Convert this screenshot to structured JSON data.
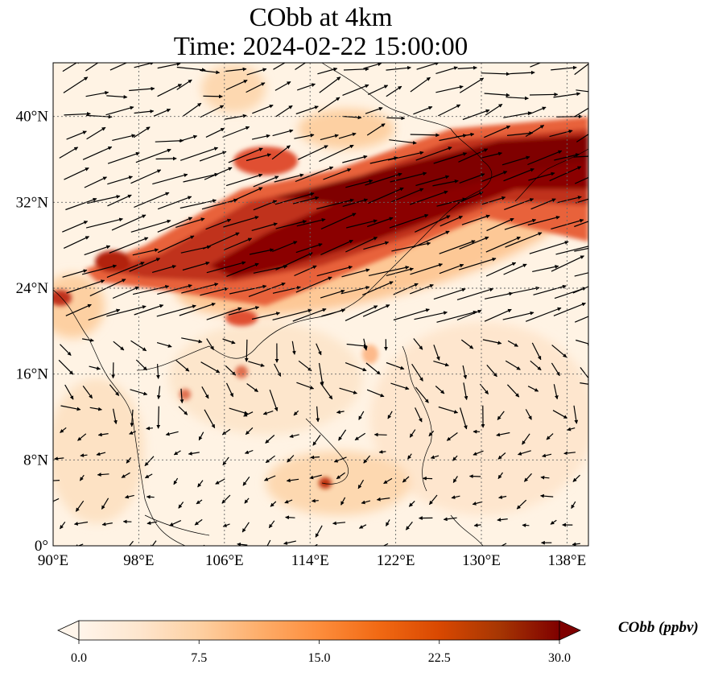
{
  "title_line1": "CObb at 4km",
  "title_line2": "Time: 2024-02-22 15:00:00",
  "colormap_colors": [
    "#fff5eb",
    "#fee6ce",
    "#fdd0a2",
    "#fdae6b",
    "#fd8d3c",
    "#f16913",
    "#d94801",
    "#a63603",
    "#7f0000"
  ],
  "map": {
    "lon_range": [
      90,
      140
    ],
    "lat_range": [
      0,
      45
    ],
    "lon_ticks": [
      "90°E",
      "98°E",
      "106°E",
      "114°E",
      "122°E",
      "130°E",
      "138°E"
    ],
    "lat_ticks": [
      "0°",
      "8°N",
      "16°N",
      "24°N",
      "32°N",
      "40°N"
    ],
    "lon_tick_values": [
      90,
      98,
      106,
      114,
      122,
      130,
      138
    ],
    "lat_tick_values": [
      0,
      8,
      16,
      24,
      32,
      40
    ]
  },
  "colorbar": {
    "label": "CObb (ppbv)",
    "min": 0,
    "max": 30,
    "ticks": [
      "0.0",
      "7.5",
      "15.0",
      "22.5",
      "30.0"
    ],
    "tick_values": [
      0,
      7.5,
      15,
      22.5,
      30
    ],
    "extend": "both"
  }
}
